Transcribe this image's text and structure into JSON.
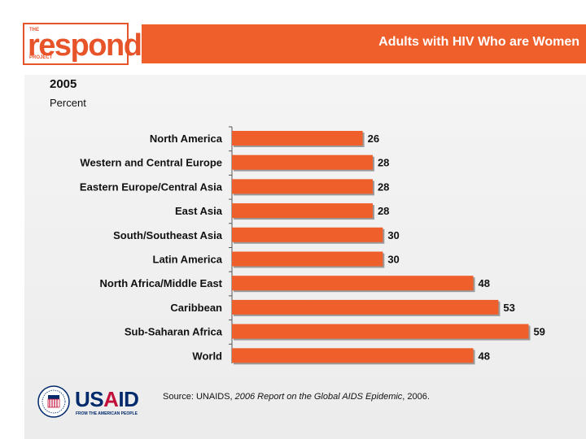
{
  "logo": {
    "top_text": "THE",
    "word": "respond",
    "bottom_text": "PROJECT"
  },
  "header": {
    "title": "Adults with HIV Who are Women"
  },
  "chart_meta": {
    "year": "2005",
    "unit": "Percent"
  },
  "chart_data": {
    "type": "bar",
    "orientation": "horizontal",
    "title": "Adults with HIV Who are Women",
    "subtitle": "2005",
    "xlabel": "Percent",
    "categories": [
      "North America",
      "Western and Central Europe",
      "Eastern Europe/Central Asia",
      "East Asia",
      "South/Southeast Asia",
      "Latin America",
      "North Africa/Middle East",
      "Caribbean",
      "Sub-Saharan Africa",
      "World"
    ],
    "values": [
      26,
      28,
      28,
      28,
      30,
      30,
      48,
      53,
      59,
      48
    ],
    "xlim": [
      0,
      62
    ],
    "color": "#ef5f2b"
  },
  "source": {
    "prefix": "Source: UNAIDS, ",
    "title": "2006 Report on the Global AIDS Epidemic",
    "suffix": ", 2006."
  },
  "footer_logo": {
    "name_blue": "US",
    "name_red": "A",
    "name_blue2": "ID",
    "tagline": "FROM THE AMERICAN PEOPLE"
  }
}
